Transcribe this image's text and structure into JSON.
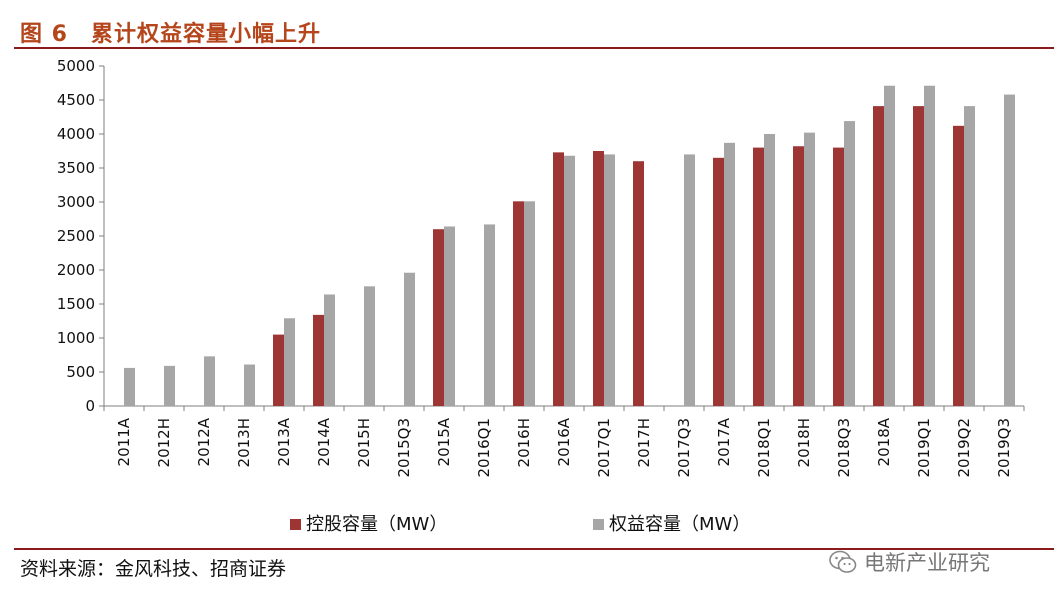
{
  "header": {
    "figure_title": "图 6　累计权益容量小幅上升"
  },
  "footer": {
    "source": "资料来源：金风科技、招商证券",
    "watermark": "电新产业研究"
  },
  "colors": {
    "accent": "#b5451b",
    "rule": "#8b1a1a",
    "holding": "#9e3535",
    "equity": "#a6a6a6"
  },
  "icons": {
    "watermark": "wechat-icon"
  },
  "chart_data": {
    "type": "bar",
    "categories": [
      "2011A",
      "2012H",
      "2012A",
      "2013H",
      "2013A",
      "2014A",
      "2015H",
      "2015Q3",
      "2015A",
      "2016Q1",
      "2016H",
      "2016A",
      "2017Q1",
      "2017H",
      "2017Q3",
      "2017A",
      "2018Q1",
      "2018H",
      "2018Q3",
      "2018A",
      "2019Q1",
      "2019Q2",
      "2019Q3"
    ],
    "series": [
      {
        "name": "控股容量（MW）",
        "values": [
          null,
          null,
          null,
          null,
          1050,
          1340,
          null,
          null,
          2600,
          null,
          3010,
          3730,
          3750,
          3600,
          null,
          3650,
          3800,
          3820,
          3800,
          4410,
          4410,
          4120,
          null
        ]
      },
      {
        "name": "权益容量（MW）",
        "values": [
          560,
          590,
          730,
          610,
          1290,
          1640,
          1760,
          1960,
          2640,
          2670,
          3010,
          3680,
          3700,
          null,
          3700,
          3870,
          4000,
          4020,
          4190,
          4710,
          4710,
          4410,
          4580
        ]
      }
    ],
    "ylim": [
      0,
      5000
    ],
    "yticks": [
      0,
      500,
      1000,
      1500,
      2000,
      2500,
      3000,
      3500,
      4000,
      4500,
      5000
    ],
    "grid": false,
    "legend_position": "bottom"
  }
}
